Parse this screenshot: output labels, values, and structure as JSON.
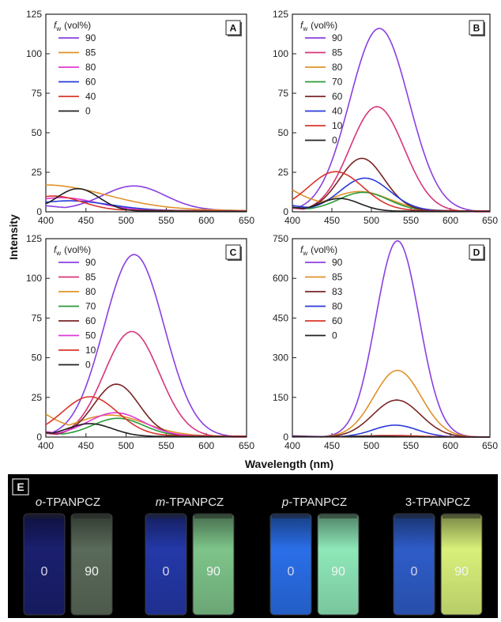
{
  "figure": {
    "ylabel": "Intensity",
    "xlabel": "Wavelength (nm)",
    "legend_title_f": "f",
    "legend_title_sub": "w",
    "legend_title_unit": "(vol%)"
  },
  "chart_data": [
    {
      "panel": "A",
      "type": "line",
      "xlim": [
        400,
        650
      ],
      "ylim": [
        0,
        125
      ],
      "xticks": [
        400,
        450,
        500,
        550,
        600,
        650
      ],
      "yticks": [
        0,
        25,
        50,
        75,
        100,
        125
      ],
      "legend_position": "top-left",
      "series": [
        {
          "name": "90",
          "color": "#8a3fe0",
          "peak": 510,
          "height": 15.2,
          "w": 62,
          "start": 4,
          "floor": 1.5
        },
        {
          "name": "85",
          "color": "#e0922a",
          "peak": 400,
          "height": 15.5,
          "w": 120,
          "start": 15.5,
          "floor": 1.5
        },
        {
          "name": "80",
          "color": "#e03ad8",
          "peak": 420,
          "height": 8,
          "w": 70,
          "start": 6,
          "floor": 1
        },
        {
          "name": "60",
          "color": "#2a3ad8",
          "peak": 430,
          "height": 6,
          "w": 80,
          "start": 6,
          "floor": 1
        },
        {
          "name": "40",
          "color": "#d8342a",
          "peak": 410,
          "height": 9,
          "w": 55,
          "start": 8,
          "floor": 1
        },
        {
          "name": "0",
          "color": "#222222",
          "peak": 440,
          "height": 14.2,
          "w": 42,
          "start": 8,
          "floor": 0.5
        }
      ]
    },
    {
      "panel": "B",
      "type": "line",
      "xlim": [
        400,
        650
      ],
      "ylim": [
        0,
        125
      ],
      "xticks": [
        400,
        450,
        500,
        550,
        600,
        650
      ],
      "yticks": [
        0,
        25,
        50,
        75,
        100,
        125
      ],
      "legend_position": "top-left",
      "series": [
        {
          "name": "90",
          "color": "#8a3fe0",
          "peak": 510,
          "height": 116,
          "w": 60,
          "start": 4,
          "floor": 0
        },
        {
          "name": "85",
          "color": "#d8347a",
          "peak": 507,
          "height": 66.5,
          "w": 55,
          "start": 4,
          "floor": 0
        },
        {
          "name": "80",
          "color": "#e0922a",
          "peak": 485,
          "height": 12,
          "w": 60,
          "start": 13,
          "floor": 1
        },
        {
          "name": "70",
          "color": "#2a9a3a",
          "peak": 490,
          "height": 11.5,
          "w": 50,
          "start": 3,
          "floor": 1
        },
        {
          "name": "60",
          "color": "#7a2424",
          "peak": 488,
          "height": 33,
          "w": 45,
          "start": 3,
          "floor": 1
        },
        {
          "name": "40",
          "color": "#2a3ad8",
          "peak": 492,
          "height": 20.5,
          "w": 50,
          "start": 5,
          "floor": 1
        },
        {
          "name": "10",
          "color": "#d8342a",
          "peak": 455,
          "height": 24.5,
          "w": 55,
          "start": 6,
          "floor": 1
        },
        {
          "name": "0",
          "color": "#222222",
          "peak": 460,
          "height": 8,
          "w": 40,
          "start": 4,
          "floor": 0.5
        }
      ]
    },
    {
      "panel": "C",
      "type": "line",
      "xlim": [
        400,
        650
      ],
      "ylim": [
        0,
        125
      ],
      "xticks": [
        400,
        450,
        500,
        550,
        600,
        650
      ],
      "yticks": [
        0,
        25,
        50,
        75,
        100,
        125
      ],
      "legend_position": "top-left",
      "series": [
        {
          "name": "90",
          "color": "#8a3fe0",
          "peak": 510,
          "height": 115,
          "w": 60,
          "start": 4,
          "floor": 0
        },
        {
          "name": "85",
          "color": "#d8347a",
          "peak": 507,
          "height": 66.5,
          "w": 55,
          "start": 4,
          "floor": 0
        },
        {
          "name": "80",
          "color": "#e0922a",
          "peak": 480,
          "height": 13,
          "w": 70,
          "start": 13.5,
          "floor": 1
        },
        {
          "name": "70",
          "color": "#2a9a3a",
          "peak": 490,
          "height": 11,
          "w": 50,
          "start": 3,
          "floor": 1
        },
        {
          "name": "60",
          "color": "#7a2424",
          "peak": 488,
          "height": 32.5,
          "w": 45,
          "start": 3,
          "floor": 1
        },
        {
          "name": "50",
          "color": "#e03ad8",
          "peak": 487,
          "height": 14.5,
          "w": 55,
          "start": 4,
          "floor": 1
        },
        {
          "name": "10",
          "color": "#d8342a",
          "peak": 455,
          "height": 24.5,
          "w": 55,
          "start": 6,
          "floor": 1
        },
        {
          "name": "0",
          "color": "#222222",
          "peak": 455,
          "height": 8,
          "w": 45,
          "start": 4,
          "floor": 0.5
        }
      ]
    },
    {
      "panel": "D",
      "type": "line",
      "xlim": [
        400,
        650
      ],
      "ylim": [
        0,
        750
      ],
      "xticks": [
        400,
        450,
        500,
        550,
        600,
        650
      ],
      "yticks": [
        0,
        150,
        300,
        450,
        600,
        750
      ],
      "legend_position": "top-left",
      "series": [
        {
          "name": "90",
          "color": "#8a3fe0",
          "peak": 533,
          "height": 742,
          "w": 44,
          "start": 8,
          "floor": 0
        },
        {
          "name": "85",
          "color": "#e0922a",
          "peak": 533,
          "height": 252,
          "w": 48,
          "start": 6,
          "floor": 0
        },
        {
          "name": "83",
          "color": "#7a2424",
          "peak": 532,
          "height": 140,
          "w": 48,
          "start": 6,
          "floor": 0
        },
        {
          "name": "80",
          "color": "#2a3ad8",
          "peak": 530,
          "height": 45,
          "w": 45,
          "start": 6,
          "floor": 0
        },
        {
          "name": "60",
          "color": "#d8342a",
          "peak": 525,
          "height": 6,
          "w": 60,
          "start": 4,
          "floor": 0
        },
        {
          "name": "0",
          "color": "#222222",
          "peak": 500,
          "height": 3,
          "w": 60,
          "start": 3,
          "floor": 0
        }
      ]
    }
  ],
  "photo": {
    "label": "E",
    "groups": [
      {
        "prefix": "o",
        "suffix": "-TPANPCZ",
        "left_value": "0",
        "right_value": "90",
        "left_color": "#1a1f6e",
        "right_color": "#5a6a5a"
      },
      {
        "prefix": "m",
        "suffix": "-TPANPCZ",
        "left_value": "0",
        "right_value": "90",
        "left_color": "#2438a8",
        "right_color": "#7ec48a"
      },
      {
        "prefix": "p",
        "suffix": "-TPANPCZ",
        "left_value": "0",
        "right_value": "90",
        "left_color": "#2a6ee8",
        "right_color": "#8ee8b8"
      },
      {
        "prefix": "",
        "suffix": "3-TPANPCZ",
        "left_value": "0",
        "right_value": "90",
        "left_color": "#2e5cc8",
        "right_color": "#d8f07a"
      }
    ]
  }
}
